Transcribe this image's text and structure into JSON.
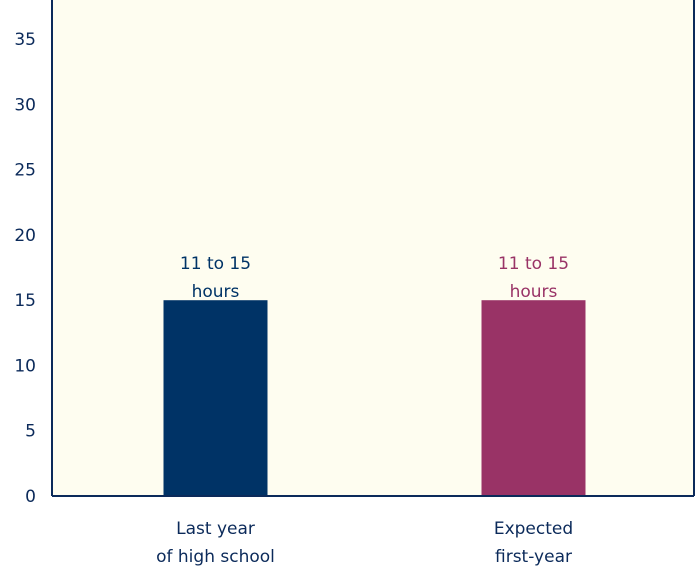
{
  "chart_data": {
    "type": "bar",
    "title": "",
    "xlabel": "",
    "ylabel": "",
    "ylim": [
      0,
      38
    ],
    "yticks": [
      0,
      5,
      10,
      15,
      20,
      25,
      30,
      35
    ],
    "categories": [
      [
        "Last year",
        "of high school"
      ],
      [
        "Expected",
        "first-year"
      ]
    ],
    "values": [
      15,
      15
    ],
    "data_labels": [
      [
        "11 to 15",
        "hours"
      ],
      [
        "11 to 15",
        "hours"
      ]
    ],
    "colors": [
      "#003366",
      "#993366"
    ],
    "plot_background": "#fefdf0",
    "axis_color": "#0b2a5a",
    "tick_label_color": "#0b2a5a",
    "grid": false
  }
}
